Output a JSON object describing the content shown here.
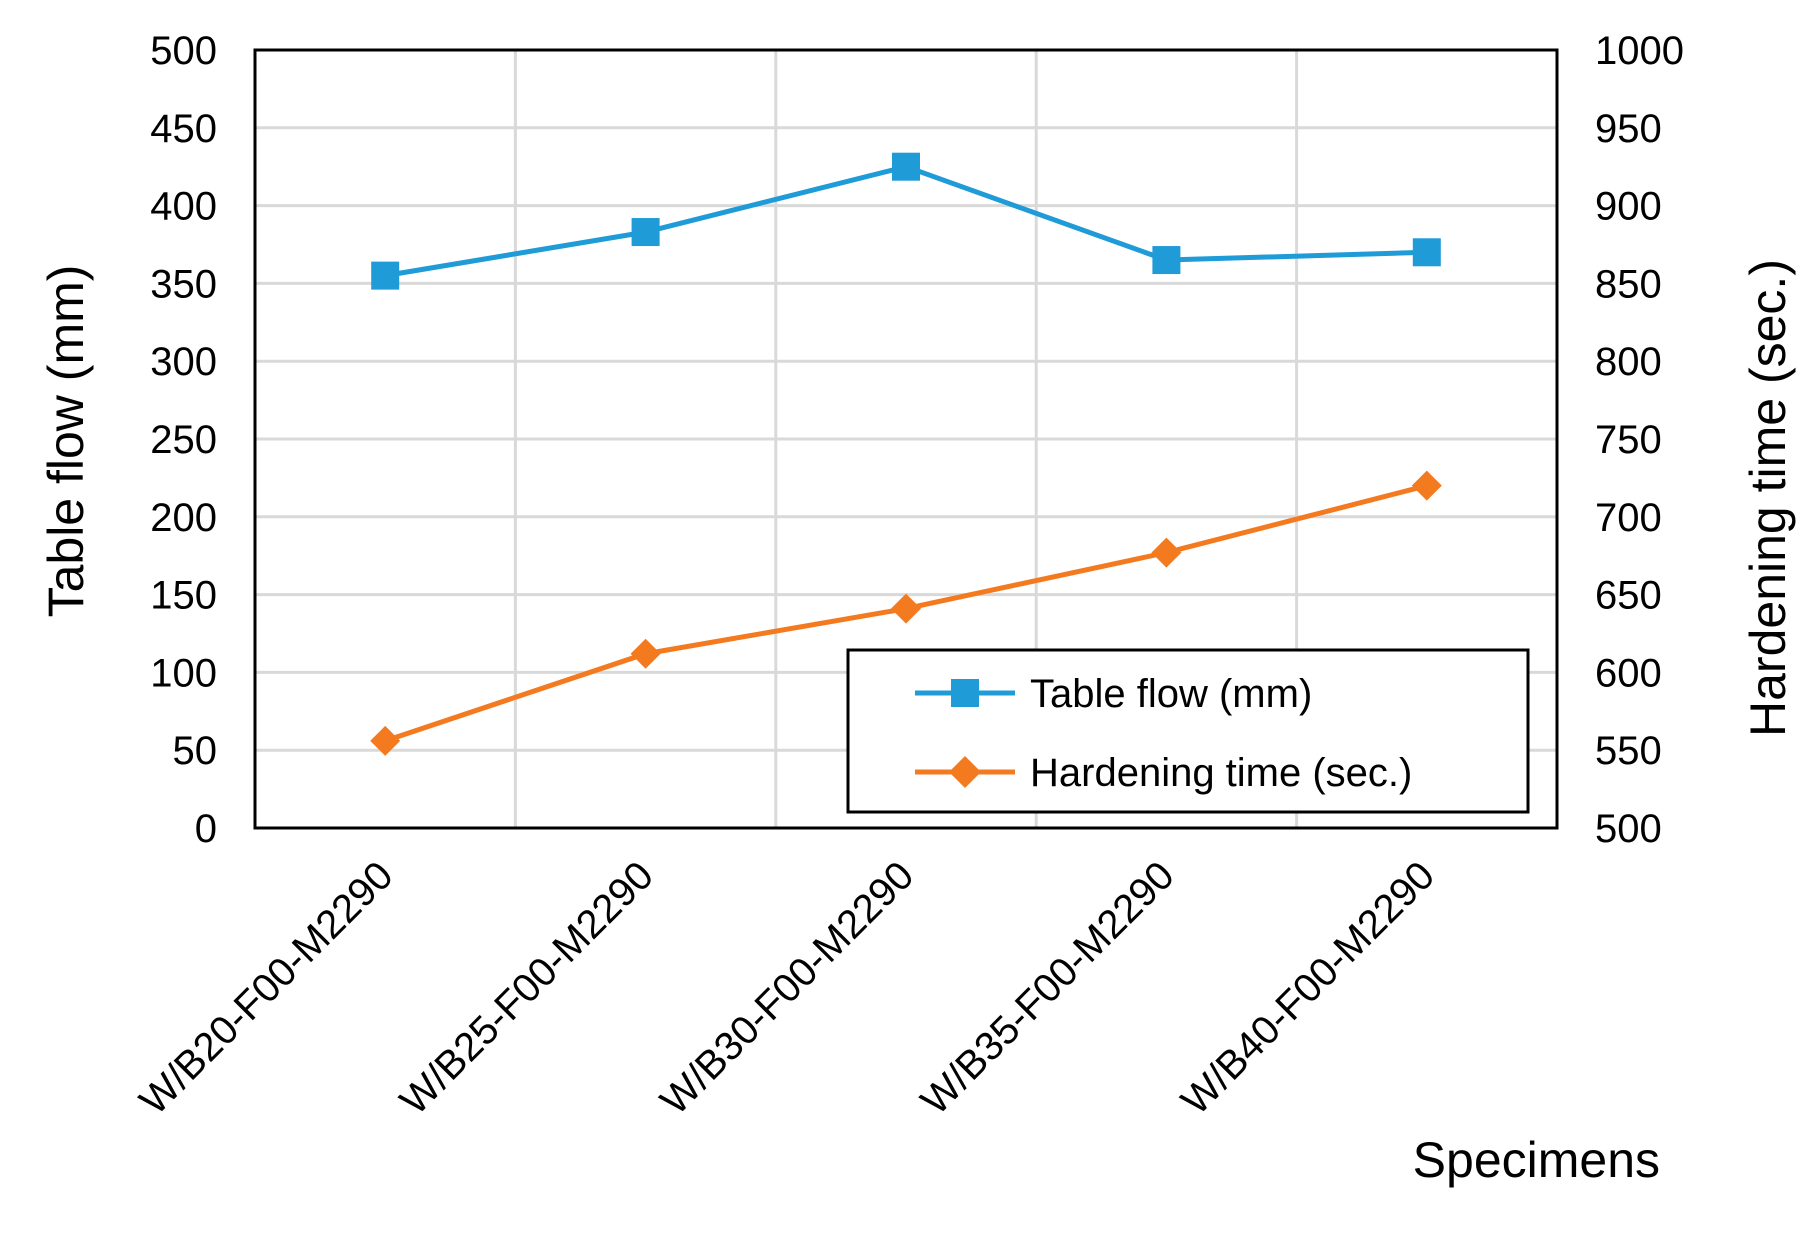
{
  "chart_data": {
    "type": "line",
    "title": "",
    "categories": [
      "W/B20-F00-M2290",
      "W/B25-F00-M2290",
      "W/B30-F00-M2290",
      "W/B35-F00-M2290",
      "W/B40-F00-M2290"
    ],
    "xlabel": "Specimens",
    "ylabel": "Table flow (mm)",
    "y2label": "Hardening time (sec.)",
    "ylim": [
      0,
      500
    ],
    "y2lim": [
      500,
      1000
    ],
    "yticks": [
      "0",
      "50",
      "100",
      "150",
      "200",
      "250",
      "300",
      "350",
      "400",
      "450",
      "500"
    ],
    "y2ticks": [
      "500",
      "550",
      "600",
      "650",
      "700",
      "750",
      "800",
      "850",
      "900",
      "950",
      "1000"
    ],
    "grid": true,
    "legend_position": "bottom-right",
    "series": [
      {
        "name": "Table flow (mm)",
        "axis": "left",
        "marker": "square",
        "color": "#1f9bd7",
        "values": [
          355,
          383,
          425,
          365,
          370
        ]
      },
      {
        "name": "Hardening time (sec.)",
        "axis": "right",
        "marker": "diamond",
        "color": "#f47a20",
        "values": [
          556,
          612,
          641,
          677,
          720
        ]
      }
    ]
  }
}
